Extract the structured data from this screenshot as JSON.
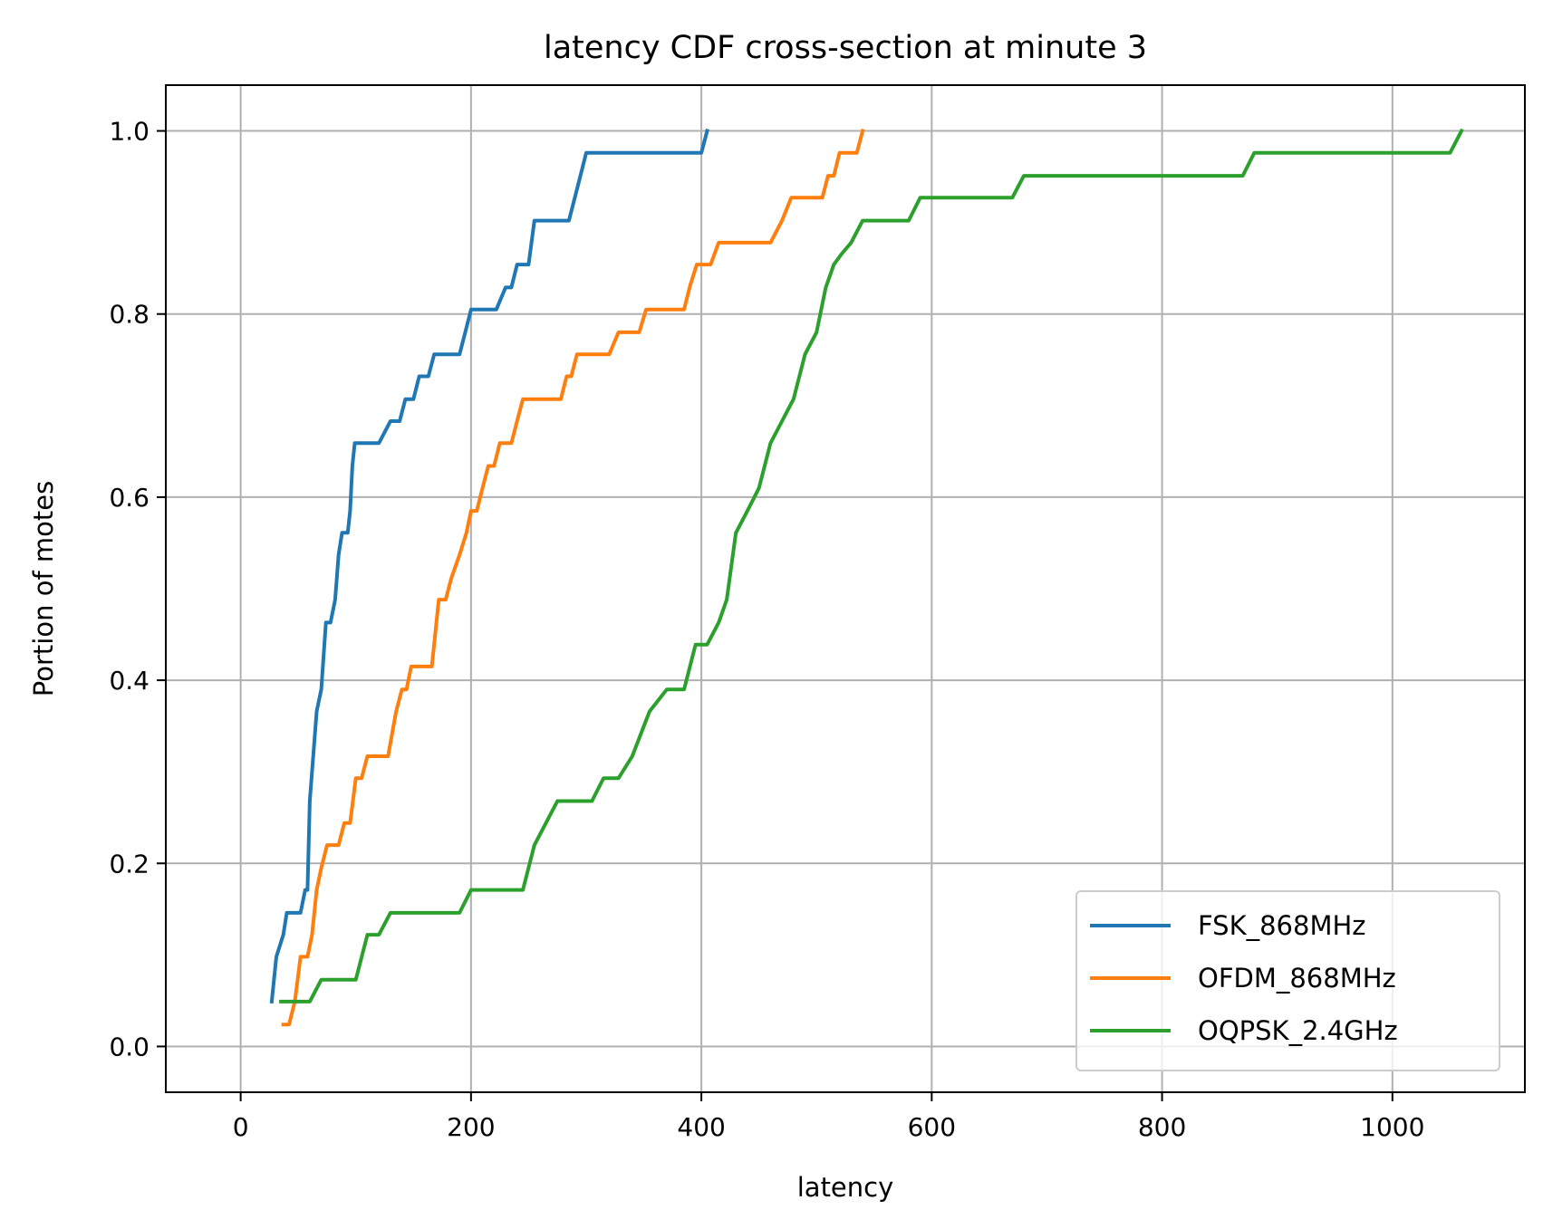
{
  "chart_data": {
    "type": "line",
    "title": "latency CDF cross-section at minute 3",
    "xlabel": "latency",
    "ylabel": "Portion of motes",
    "xlim": [
      -65,
      1115
    ],
    "ylim": [
      -0.05,
      1.05
    ],
    "xticks": [
      0,
      200,
      400,
      600,
      800,
      1000
    ],
    "yticks": [
      0.0,
      0.2,
      0.4,
      0.6,
      0.8,
      1.0
    ],
    "xtick_labels": [
      "0",
      "200",
      "400",
      "600",
      "800",
      "1000"
    ],
    "ytick_labels": [
      "0.0",
      "0.2",
      "0.4",
      "0.6",
      "0.8",
      "1.0"
    ],
    "grid": true,
    "legend_position": "lower-right",
    "series": [
      {
        "name": "FSK_868MHz",
        "color": "#1f77b4",
        "x": [
          27,
          31,
          37,
          40,
          47,
          52,
          56,
          58,
          60,
          63,
          66,
          70,
          74,
          75,
          78,
          82,
          85,
          88,
          91,
          93,
          95,
          97,
          99,
          101,
          104,
          107,
          112,
          120,
          130,
          134,
          138,
          143,
          146,
          150,
          155,
          160,
          163,
          168,
          172,
          175,
          180,
          185,
          190,
          195,
          200,
          205,
          210,
          215,
          222,
          230,
          235,
          240,
          245,
          250,
          255,
          260,
          264,
          268,
          275,
          285,
          295,
          300,
          305,
          320,
          340,
          360,
          380,
          400,
          405
        ],
        "y": [
          0.049,
          0.098,
          0.122,
          0.146,
          0.146,
          0.146,
          0.171,
          0.171,
          0.268,
          0.317,
          0.366,
          0.39,
          0.463,
          0.463,
          0.463,
          0.488,
          0.537,
          0.561,
          0.561,
          0.561,
          0.585,
          0.634,
          0.659,
          0.659,
          0.659,
          0.659,
          0.659,
          0.659,
          0.683,
          0.683,
          0.683,
          0.707,
          0.707,
          0.707,
          0.732,
          0.732,
          0.732,
          0.756,
          0.756,
          0.756,
          0.756,
          0.756,
          0.756,
          0.78,
          0.805,
          0.805,
          0.805,
          0.805,
          0.805,
          0.829,
          0.829,
          0.854,
          0.854,
          0.854,
          0.902,
          0.902,
          0.902,
          0.902,
          0.902,
          0.902,
          0.951,
          0.976,
          0.976,
          0.976,
          0.976,
          0.976,
          0.976,
          0.976,
          1.0
        ]
      },
      {
        "name": "OFDM_868MHz",
        "color": "#ff7f0e",
        "x": [
          37,
          42,
          47,
          52,
          58,
          62,
          66,
          70,
          75,
          80,
          85,
          90,
          95,
          100,
          105,
          110,
          115,
          120,
          128,
          135,
          140,
          144,
          148,
          152,
          156,
          160,
          166,
          172,
          178,
          183,
          190,
          196,
          200,
          205,
          210,
          215,
          220,
          225,
          230,
          235,
          240,
          245,
          250,
          255,
          262,
          270,
          278,
          283,
          287,
          292,
          297,
          302,
          310,
          320,
          328,
          333,
          340,
          346,
          352,
          360,
          370,
          380,
          385,
          390,
          396,
          403,
          408,
          415,
          422,
          430,
          440,
          450,
          460,
          470,
          478,
          484,
          490,
          498,
          505,
          510,
          515,
          520,
          525,
          530,
          535,
          540
        ],
        "y": [
          0.024,
          0.024,
          0.049,
          0.098,
          0.098,
          0.122,
          0.171,
          0.195,
          0.22,
          0.22,
          0.22,
          0.244,
          0.244,
          0.293,
          0.293,
          0.317,
          0.317,
          0.317,
          0.317,
          0.366,
          0.39,
          0.39,
          0.415,
          0.415,
          0.415,
          0.415,
          0.415,
          0.488,
          0.488,
          0.512,
          0.537,
          0.561,
          0.585,
          0.585,
          0.61,
          0.634,
          0.634,
          0.659,
          0.659,
          0.659,
          0.683,
          0.707,
          0.707,
          0.707,
          0.707,
          0.707,
          0.707,
          0.732,
          0.732,
          0.756,
          0.756,
          0.756,
          0.756,
          0.756,
          0.78,
          0.78,
          0.78,
          0.78,
          0.805,
          0.805,
          0.805,
          0.805,
          0.805,
          0.83,
          0.854,
          0.854,
          0.854,
          0.878,
          0.878,
          0.878,
          0.878,
          0.878,
          0.878,
          0.902,
          0.927,
          0.927,
          0.927,
          0.927,
          0.927,
          0.951,
          0.951,
          0.976,
          0.976,
          0.976,
          0.976,
          1.0
        ]
      },
      {
        "name": "OQPSK_2.4GHz",
        "color": "#2ca02c",
        "x": [
          35,
          45,
          60,
          70,
          80,
          90,
          100,
          110,
          120,
          130,
          150,
          170,
          190,
          200,
          215,
          230,
          245,
          255,
          265,
          275,
          290,
          305,
          315,
          328,
          340,
          355,
          370,
          385,
          395,
          405,
          415,
          422,
          430,
          440,
          450,
          460,
          470,
          480,
          490,
          500,
          508,
          515,
          522,
          530,
          540,
          555,
          570,
          580,
          590,
          610,
          630,
          650,
          670,
          680,
          700,
          750,
          800,
          850,
          870,
          880,
          900,
          950,
          1000,
          1050,
          1060
        ],
        "y": [
          0.049,
          0.049,
          0.049,
          0.073,
          0.073,
          0.073,
          0.073,
          0.122,
          0.122,
          0.146,
          0.146,
          0.146,
          0.146,
          0.171,
          0.171,
          0.171,
          0.171,
          0.22,
          0.244,
          0.268,
          0.268,
          0.268,
          0.293,
          0.293,
          0.317,
          0.366,
          0.39,
          0.39,
          0.439,
          0.439,
          0.463,
          0.488,
          0.561,
          0.585,
          0.61,
          0.659,
          0.683,
          0.707,
          0.756,
          0.78,
          0.829,
          0.854,
          0.866,
          0.878,
          0.902,
          0.902,
          0.902,
          0.902,
          0.927,
          0.927,
          0.927,
          0.927,
          0.927,
          0.951,
          0.951,
          0.951,
          0.951,
          0.951,
          0.951,
          0.976,
          0.976,
          0.976,
          0.976,
          0.976,
          1.0
        ]
      }
    ]
  }
}
